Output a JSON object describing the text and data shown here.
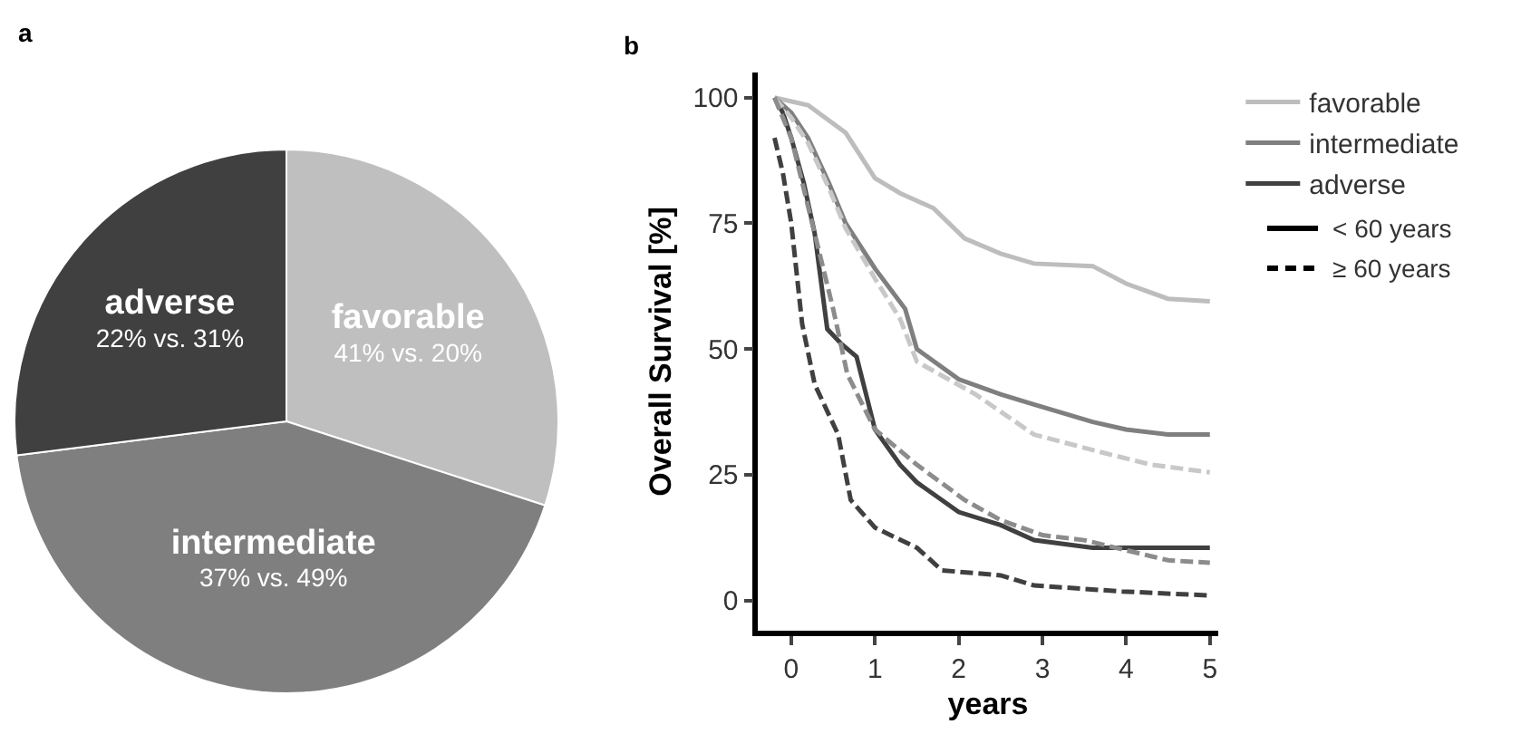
{
  "chart_data": [
    {
      "type": "pie",
      "title": "a",
      "categories": [
        "favorable",
        "intermediate",
        "adverse"
      ],
      "values": [
        30,
        43,
        27
      ],
      "colors": [
        "#bfbfbf",
        "#7f7f7f",
        "#404040"
      ],
      "annotations": [
        "41% vs. 20%",
        "37% vs. 49%",
        "22% vs. 31%"
      ],
      "legend": false
    },
    {
      "type": "line",
      "title": "b",
      "xlabel": "years",
      "ylabel": "Overall Survival [%]",
      "xlim": [
        -0.4,
        5.1
      ],
      "xticks": [
        0,
        1,
        2,
        3,
        4,
        5
      ],
      "ylim": [
        -6,
        105
      ],
      "yticks": [
        0,
        25,
        50,
        75,
        100
      ],
      "grid": false,
      "marker": "none",
      "legend": "right",
      "annotations": [
        "< 60 years",
        "≥ 60 years"
      ],
      "series": [
        {
          "name": "favorable",
          "color": "#bdbdbd",
          "line_style": "solid",
          "x": [
            -0.2,
            0.2,
            0.65,
            1.0,
            1.3,
            1.7,
            2.07,
            2.5,
            2.9,
            3.6,
            4.0,
            4.5,
            5.0
          ],
          "values": [
            100,
            98.5,
            93,
            84,
            81,
            78,
            72,
            69,
            67,
            66.5,
            63,
            60,
            59.5
          ]
        },
        {
          "name": "intermediate",
          "color": "#7f7f7f",
          "line_style": "solid",
          "x": [
            -0.2,
            0.0,
            0.2,
            0.45,
            0.65,
            1.0,
            1.36,
            1.5,
            2.0,
            2.5,
            2.9,
            3.6,
            4.0,
            4.5,
            5.0
          ],
          "values": [
            100,
            97,
            92,
            83,
            75,
            66,
            58,
            50,
            44,
            41,
            39,
            35.5,
            34,
            33,
            33
          ]
        },
        {
          "name": "adverse",
          "color": "#404040",
          "line_style": "solid",
          "x": [
            -0.2,
            -0.1,
            0.0,
            0.15,
            0.28,
            0.43,
            0.6,
            0.78,
            1.0,
            1.3,
            1.5,
            2.0,
            2.5,
            2.9,
            3.6,
            4.0,
            5.0
          ],
          "values": [
            100,
            97,
            92,
            83,
            73,
            54,
            51,
            48.5,
            34,
            27,
            23.5,
            17.6,
            15,
            12,
            10.5,
            10.5,
            10.5
          ]
        },
        {
          "color": "#c8c8c8",
          "line_style": "dashed",
          "x": [
            -0.2,
            0.0,
            0.2,
            0.45,
            0.65,
            1.0,
            1.3,
            1.5,
            2.2,
            2.9,
            3.7,
            4.3,
            5.0
          ],
          "values": [
            100,
            96,
            91,
            82,
            74,
            64,
            56,
            47.5,
            41,
            33,
            29.5,
            27,
            25.5
          ]
        },
        {
          "color": "#8c8c8c",
          "line_style": "dashed",
          "x": [
            -0.2,
            0.0,
            0.25,
            0.5,
            0.67,
            1.0,
            1.5,
            2.07,
            2.5,
            3.0,
            3.5,
            4.0,
            4.5,
            5.0
          ],
          "values": [
            100,
            92,
            75,
            58,
            45,
            34,
            27,
            20,
            16,
            13,
            12,
            10,
            8,
            7.5
          ]
        },
        {
          "color": "#404040",
          "line_style": "dashed",
          "x": [
            -0.2,
            -0.1,
            0.0,
            0.13,
            0.28,
            0.56,
            0.71,
            1.0,
            1.5,
            1.8,
            2.5,
            2.9,
            3.95,
            5.0
          ],
          "values": [
            92,
            85,
            75,
            55,
            43,
            33,
            20,
            14.5,
            10.5,
            6,
            5,
            3,
            1.8,
            1
          ]
        }
      ]
    }
  ]
}
